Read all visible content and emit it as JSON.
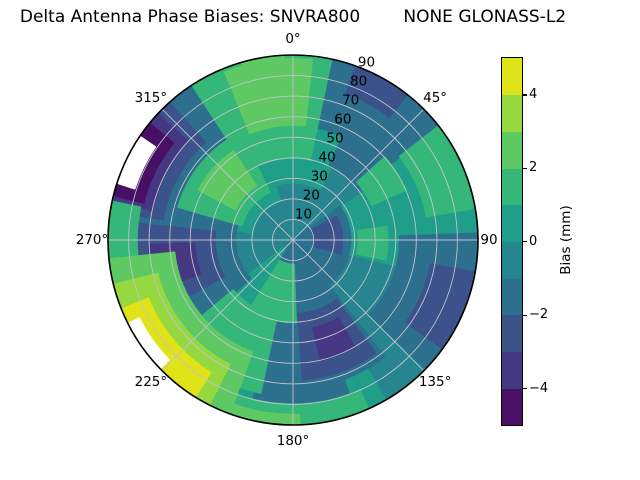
{
  "title": "Delta Antenna Phase Biases: SNVRA800        NONE GLONASS-L2",
  "chart_data": {
    "type": "heatmap",
    "projection": "polar-contourf",
    "colormap": "viridis",
    "levels": [
      -5,
      -4,
      -3,
      -2,
      -1,
      0,
      1,
      2,
      3,
      4,
      5
    ],
    "theta_zero_location": "top",
    "theta_direction": "clockwise",
    "theta_ticks": [
      {
        "angle": 0,
        "label": "0°"
      },
      {
        "angle": 45,
        "label": "45°"
      },
      {
        "angle": 90,
        "label": "90"
      },
      {
        "angle": 135,
        "label": "135°"
      },
      {
        "angle": 180,
        "label": "180°"
      },
      {
        "angle": 225,
        "label": "225°"
      },
      {
        "angle": 270,
        "label": "270°"
      },
      {
        "angle": 315,
        "label": "315°"
      }
    ],
    "r_ticks": [
      10,
      20,
      30,
      40,
      50,
      60,
      70,
      80,
      90
    ],
    "r_max": 90,
    "r_label_angle_deg": 22.5,
    "grid_color": "#c3c3cd",
    "outline_color": "#000000",
    "base_bias_band": "-1..0 mm",
    "base_color": "#26858e",
    "colorbar": {
      "label": "Bias (mm)",
      "ticks": [
        {
          "value": 4,
          "label": "4"
        },
        {
          "value": 2,
          "label": "2"
        },
        {
          "value": 0,
          "label": "0"
        },
        {
          "value": -2,
          "label": "−2"
        },
        {
          "value": -4,
          "label": "−4"
        }
      ],
      "value_range": [
        -5,
        5
      ],
      "segment_colors_bottom_to_top": [
        "#471064",
        "#453781",
        "#3b528b",
        "#2d708e",
        "#25858e",
        "#1f9e89",
        "#35b779",
        "#5ec962",
        "#95d840",
        "#dfe318"
      ]
    },
    "regions": [
      {
        "az": [
          318,
          28
        ],
        "r": [
          28,
          90
        ],
        "band": "0..1 mm",
        "color": "#1f9e89"
      },
      {
        "az": [
          280,
          342
        ],
        "r": [
          20,
          72
        ],
        "band": "0..1 mm",
        "color": "#1f9e89"
      },
      {
        "az": [
          46,
          100
        ],
        "r": [
          56,
          90
        ],
        "band": "0..1 mm",
        "color": "#1f9e89"
      },
      {
        "az": [
          56,
          104
        ],
        "r": [
          16,
          56
        ],
        "band": "0..1 mm",
        "color": "#1f9e89"
      },
      {
        "az": [
          150,
          232
        ],
        "r": [
          50,
          90
        ],
        "band": "0..1 mm",
        "color": "#1f9e89"
      },
      {
        "az": [
          172,
          232
        ],
        "r": [
          6,
          78
        ],
        "band": "0..1 mm",
        "color": "#1f9e89"
      },
      {
        "az": [
          254,
          288
        ],
        "r": [
          66,
          90
        ],
        "band": "0..1 mm",
        "color": "#1f9e89"
      },
      {
        "az": [
          55,
          212
        ],
        "r": [
          0,
          28
        ],
        "band": "-2..-1 mm",
        "color": "#2d708e"
      },
      {
        "az": [
          12,
          52
        ],
        "r": [
          56,
          90
        ],
        "band": "-2..-1 mm",
        "color": "#2d708e"
      },
      {
        "az": [
          26,
          52
        ],
        "r": [
          40,
          90
        ],
        "band": "-2..-1 mm",
        "color": "#2d708e"
      },
      {
        "az": [
          88,
          134
        ],
        "r": [
          52,
          90
        ],
        "band": "-2..-1 mm",
        "color": "#2d708e"
      },
      {
        "az": [
          142,
          196
        ],
        "r": [
          22,
          72
        ],
        "band": "-2..-1 mm",
        "color": "#2d708e"
      },
      {
        "az": [
          160,
          194
        ],
        "r": [
          58,
          85
        ],
        "band": "-2..-1 mm",
        "color": "#2d708e"
      },
      {
        "az": [
          228,
          294
        ],
        "r": [
          28,
          86
        ],
        "band": "-2..-1 mm",
        "color": "#2d708e"
      },
      {
        "az": [
          272,
          328
        ],
        "r": [
          54,
          90
        ],
        "band": "-2..-1 mm",
        "color": "#2d708e"
      },
      {
        "az": [
          20,
          38
        ],
        "r": [
          76,
          90
        ],
        "band": "-3..-2 mm",
        "color": "#3b528b"
      },
      {
        "az": [
          100,
          126
        ],
        "r": [
          68,
          90
        ],
        "band": "-3..-2 mm",
        "color": "#3b528b"
      },
      {
        "az": [
          144,
          176
        ],
        "r": [
          36,
          68
        ],
        "band": "-3..-2 mm",
        "color": "#3b528b"
      },
      {
        "az": [
          242,
          276
        ],
        "r": [
          38,
          78
        ],
        "band": "-3..-2 mm",
        "color": "#3b528b"
      },
      {
        "az": [
          279,
          318
        ],
        "r": [
          64,
          90
        ],
        "band": "-3..-2 mm",
        "color": "#3b528b"
      },
      {
        "az": [
          62,
          106
        ],
        "r": [
          10,
          24
        ],
        "band": "-3..-2 mm",
        "color": "#3b528b"
      },
      {
        "az": [
          282,
          313
        ],
        "r": [
          70,
          90
        ],
        "band": "-4..-3 mm",
        "color": "#453781"
      },
      {
        "az": [
          250,
          268
        ],
        "r": [
          48,
          70
        ],
        "band": "-4..-3 mm",
        "color": "#453781"
      },
      {
        "az": [
          150,
          167
        ],
        "r": [
          44,
          60
        ],
        "band": "-4..-3 mm",
        "color": "#453781"
      },
      {
        "az": [
          284,
          309
        ],
        "r": [
          75,
          90
        ],
        "band": "-5..-4 mm",
        "color": "#471064"
      },
      {
        "az": [
          288,
          304
        ],
        "r": [
          81,
          90
        ],
        "band": "< -5 mm",
        "color": "#ffffff"
      },
      {
        "az": [
          327,
          12
        ],
        "r": [
          40,
          90
        ],
        "band": "1..2 mm",
        "color": "#35b779"
      },
      {
        "az": [
          286,
          334
        ],
        "r": [
          26,
          58
        ],
        "band": "1..2 mm",
        "color": "#35b779"
      },
      {
        "az": [
          52,
          80
        ],
        "r": [
          66,
          90
        ],
        "band": "1..2 mm",
        "color": "#35b779"
      },
      {
        "az": [
          48,
          66
        ],
        "r": [
          42,
          60
        ],
        "band": "1..2 mm",
        "color": "#35b779"
      },
      {
        "az": [
          82,
          102
        ],
        "r": [
          32,
          46
        ],
        "band": "1..2 mm",
        "color": "#35b779"
      },
      {
        "az": [
          156,
          212
        ],
        "r": [
          80,
          90
        ],
        "band": "1..2 mm",
        "color": "#35b779"
      },
      {
        "az": [
          192,
          230
        ],
        "r": [
          38,
          76
        ],
        "band": "1..2 mm",
        "color": "#35b779"
      },
      {
        "az": [
          178,
          212
        ],
        "r": [
          12,
          40
        ],
        "band": "1..2 mm",
        "color": "#35b779"
      },
      {
        "az": [
          258,
          282
        ],
        "r": [
          76,
          90
        ],
        "band": "1..2 mm",
        "color": "#35b779"
      },
      {
        "az": [
          338,
          6
        ],
        "r": [
          56,
          88
        ],
        "band": "2..3 mm",
        "color": "#5ec962"
      },
      {
        "az": [
          298,
          326
        ],
        "r": [
          32,
          52
        ],
        "band": "2..3 mm",
        "color": "#5ec962"
      },
      {
        "az": [
          344,
          357
        ],
        "r": [
          74,
          90
        ],
        "band": "2..3 mm",
        "color": "#5ec962"
      },
      {
        "az": [
          200,
          264
        ],
        "r": [
          58,
          90
        ],
        "band": "2..3 mm",
        "color": "#5ec962"
      },
      {
        "az": [
          178,
          206
        ],
        "r": [
          85,
          90
        ],
        "band": "2..3 mm",
        "color": "#5ec962"
      },
      {
        "az": [
          207,
          256
        ],
        "r": [
          68,
          90
        ],
        "band": "3..4 mm",
        "color": "#95d840"
      },
      {
        "az": [
          212,
          248
        ],
        "r": [
          76,
          90
        ],
        "band": "4..5 mm",
        "color": "#dfe318"
      },
      {
        "az": [
          226,
          243
        ],
        "r": [
          84,
          90
        ],
        "band": "> 5 mm",
        "color": "#ffffff"
      }
    ]
  }
}
